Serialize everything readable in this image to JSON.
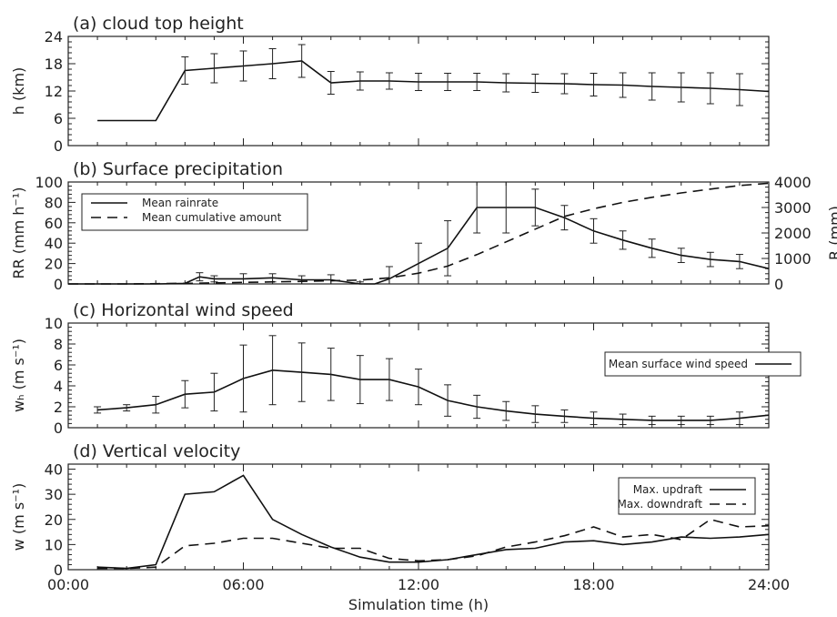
{
  "chart_data": [
    {
      "type": "line",
      "title": "(a) cloud top height",
      "xlabel": "",
      "ylabel": "h (km)",
      "ylim": [
        0,
        24
      ],
      "yticks": [
        0,
        6,
        12,
        18,
        24
      ],
      "series": [
        {
          "style": "solid",
          "x": [
            1,
            2,
            3,
            4,
            5,
            6,
            7,
            8,
            9,
            10,
            11,
            12,
            13,
            14,
            15,
            16,
            17,
            18,
            19,
            20,
            21,
            22,
            23,
            24
          ],
          "y": [
            5.5,
            5.5,
            5.5,
            16.5,
            17.0,
            17.5,
            18.0,
            18.6,
            13.8,
            14.2,
            14.2,
            14.0,
            14.0,
            14.0,
            13.8,
            13.7,
            13.6,
            13.4,
            13.3,
            13.0,
            12.8,
            12.6,
            12.3,
            11.9
          ],
          "error": [
            0,
            0,
            0,
            3.0,
            3.2,
            3.3,
            3.3,
            3.6,
            2.5,
            2.0,
            1.8,
            1.9,
            1.9,
            1.9,
            2.0,
            2.0,
            2.2,
            2.5,
            2.7,
            3.0,
            3.2,
            3.4,
            3.5,
            0
          ]
        }
      ]
    },
    {
      "type": "line",
      "title": "(b) Surface precipitation",
      "xlabel": "",
      "ylabel": "RR (mm h⁻¹)",
      "ylabel_right": "R (mm)",
      "ylim": [
        0,
        100
      ],
      "yticks": [
        0,
        20,
        40,
        60,
        80,
        100
      ],
      "ylim_right": [
        0,
        4000
      ],
      "yticks_right": [
        0,
        1000,
        2000,
        3000,
        4000
      ],
      "legend": {
        "position": "top-left",
        "entries": [
          "Mean rainrate",
          "Mean cumulative amount"
        ]
      },
      "series": [
        {
          "name": "Mean rainrate",
          "style": "solid",
          "axis": "left",
          "x": [
            0,
            1,
            2,
            3,
            4,
            4.5,
            5,
            6,
            7,
            8,
            9,
            10,
            10.5,
            11,
            12,
            13,
            14,
            15,
            16,
            17,
            18,
            19,
            20,
            21,
            22,
            23,
            24
          ],
          "y": [
            0,
            0,
            0,
            0,
            0.5,
            7,
            5,
            5,
            6,
            4,
            4,
            0,
            0,
            5,
            20,
            35,
            75,
            75,
            75,
            65,
            52,
            43,
            35,
            28,
            24,
            22,
            15
          ],
          "error": [
            0,
            0,
            0,
            0,
            0,
            4,
            3,
            5,
            4,
            4,
            5,
            2,
            0,
            12,
            20,
            27,
            25,
            25,
            18,
            12,
            12,
            9,
            9,
            7,
            7,
            7,
            0
          ]
        },
        {
          "name": "Mean cumulative amount",
          "style": "dashed",
          "axis": "right",
          "x": [
            0,
            2,
            4,
            6,
            8,
            10,
            11,
            12,
            13,
            14,
            15,
            16,
            17,
            18,
            19,
            20,
            21,
            22,
            23,
            24
          ],
          "y": [
            0,
            0,
            20,
            60,
            100,
            150,
            240,
            420,
            700,
            1150,
            1650,
            2150,
            2650,
            2950,
            3200,
            3400,
            3570,
            3720,
            3860,
            3950
          ]
        }
      ]
    },
    {
      "type": "line",
      "title": "(c) Horizontal wind speed",
      "xlabel": "",
      "ylabel": "wₕ (m s⁻¹)",
      "ylim": [
        0,
        10
      ],
      "yticks": [
        0,
        2,
        4,
        6,
        8,
        10
      ],
      "legend": {
        "position": "top-right",
        "entries": [
          "Mean surface wind speed"
        ]
      },
      "series": [
        {
          "name": "Mean surface wind speed",
          "style": "solid",
          "x": [
            1,
            2,
            3,
            4,
            5,
            6,
            7,
            8,
            9,
            10,
            11,
            12,
            13,
            14,
            15,
            16,
            17,
            18,
            19,
            20,
            21,
            22,
            23,
            24
          ],
          "y": [
            1.7,
            1.9,
            2.2,
            3.2,
            3.4,
            4.7,
            5.5,
            5.3,
            5.1,
            4.6,
            4.6,
            3.9,
            2.6,
            2.0,
            1.6,
            1.3,
            1.1,
            0.9,
            0.8,
            0.7,
            0.7,
            0.7,
            0.9,
            1.2
          ],
          "error": [
            0.3,
            0.3,
            0.8,
            1.3,
            1.8,
            3.2,
            3.3,
            2.8,
            2.5,
            2.3,
            2.0,
            1.7,
            1.5,
            1.1,
            0.9,
            0.8,
            0.6,
            0.6,
            0.5,
            0.4,
            0.4,
            0.4,
            0.6,
            0
          ]
        }
      ]
    },
    {
      "type": "line",
      "title": "(d) Vertical velocity",
      "xlabel": "Simulation time (h)",
      "ylabel": "w (m s⁻¹)",
      "ylim": [
        0,
        42
      ],
      "yticks": [
        0,
        10,
        20,
        30,
        40
      ],
      "xticks": [
        0,
        6,
        12,
        18,
        24
      ],
      "xtick_labels": [
        "00:00",
        "06:00",
        "12:00",
        "18:00",
        "24:00"
      ],
      "legend": {
        "position": "top-right",
        "entries": [
          "Max. updraft",
          "Max. downdraft"
        ]
      },
      "series": [
        {
          "name": "Max. updraft",
          "style": "solid",
          "x": [
            1,
            2,
            3,
            4,
            5,
            6,
            7,
            8,
            9,
            10,
            11,
            12,
            13,
            14,
            15,
            16,
            17,
            18,
            19,
            20,
            21,
            22,
            23,
            24
          ],
          "y": [
            1,
            0.5,
            2,
            30,
            31,
            37.5,
            20,
            14,
            9,
            5,
            3,
            3,
            4,
            6,
            8,
            8.5,
            11,
            11.5,
            10,
            11,
            13,
            12.5,
            13,
            14
          ]
        },
        {
          "name": "Max. downdraft",
          "style": "dashed",
          "x": [
            1,
            2,
            3,
            4,
            5,
            6,
            7,
            8,
            9,
            10,
            11,
            12,
            13,
            14,
            15,
            16,
            17,
            18,
            19,
            20,
            21,
            22,
            23,
            24
          ],
          "y": [
            0.5,
            0.5,
            1,
            9.5,
            10.5,
            12.5,
            12.5,
            10.5,
            8.5,
            8.5,
            4.5,
            3.5,
            4,
            5.5,
            9,
            11,
            13.5,
            17,
            13,
            14,
            12,
            20,
            17,
            17.5
          ]
        }
      ]
    }
  ]
}
